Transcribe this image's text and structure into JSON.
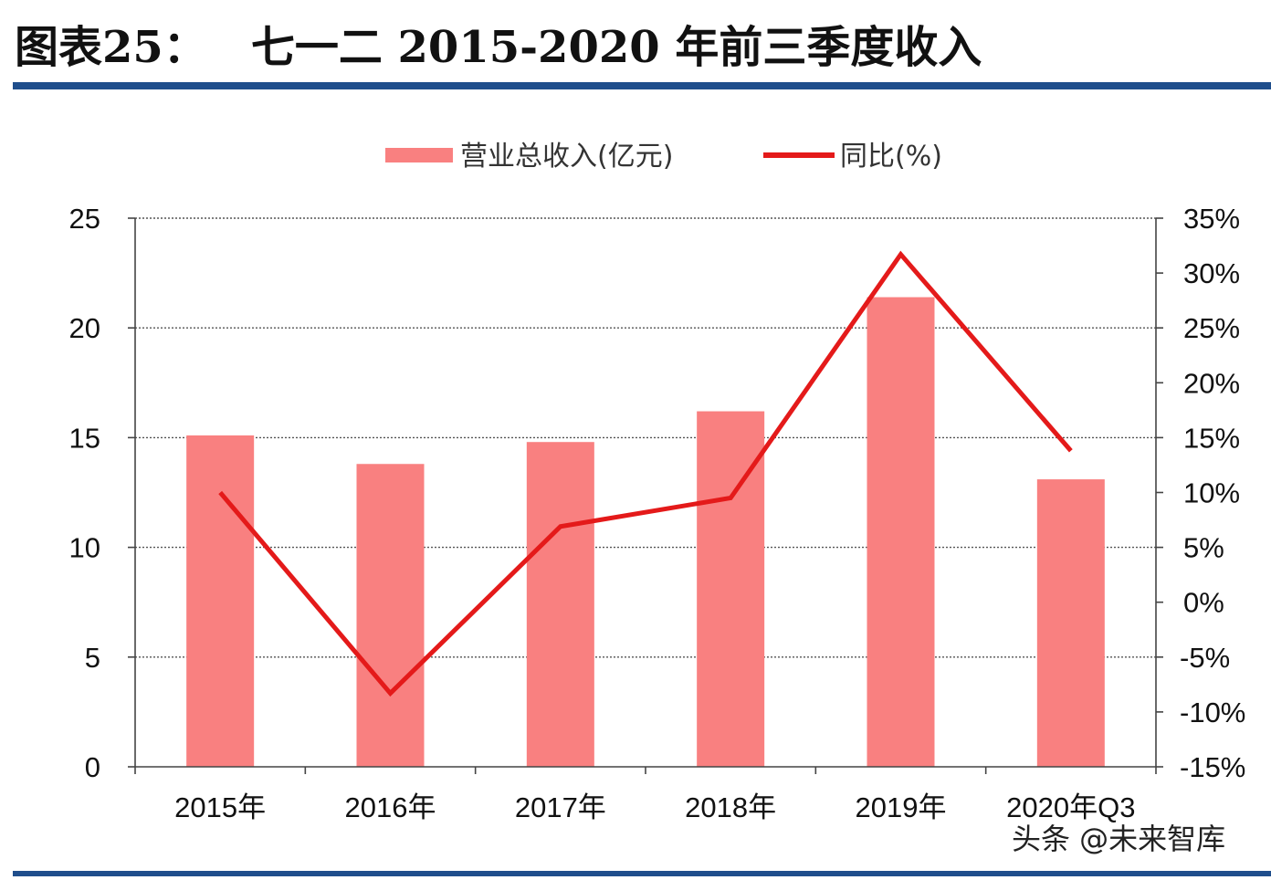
{
  "header": {
    "figure_label": "图表25：",
    "title": "七一二 2015-2020 年前三季度收入"
  },
  "watermark": "头条 @未来智库",
  "colors": {
    "bar": "#f98080",
    "line": "#e41a1a",
    "rule": "#1f4e8c"
  },
  "chart_data": {
    "type": "bar",
    "categories": [
      "2015年",
      "2016年",
      "2017年",
      "2018年",
      "2019年",
      "2020年Q3"
    ],
    "series": [
      {
        "name": "营业总收入(亿元)",
        "type": "bar",
        "axis": "left",
        "values": [
          15.1,
          13.8,
          14.8,
          16.2,
          21.4,
          13.1
        ]
      },
      {
        "name": "同比(%)",
        "type": "line",
        "axis": "right",
        "values": [
          10.0,
          -8.3,
          6.9,
          9.5,
          31.7,
          13.8
        ]
      }
    ],
    "left_axis": {
      "ylim": [
        0,
        25
      ],
      "ticks": [
        0,
        5,
        10,
        15,
        20,
        25
      ],
      "tick_labels": [
        "0",
        "5",
        "10",
        "15",
        "20",
        "25"
      ]
    },
    "right_axis": {
      "ylim": [
        -15,
        35
      ],
      "ticks": [
        -15,
        -10,
        -5,
        0,
        5,
        10,
        15,
        20,
        25,
        30,
        35
      ],
      "tick_labels": [
        "-15%",
        "-10%",
        "-5%",
        "0%",
        "5%",
        "10%",
        "15%",
        "20%",
        "25%",
        "30%",
        "35%"
      ]
    },
    "legend": {
      "position": "top-center",
      "items": [
        "营业总收入(亿元)",
        "同比(%)"
      ]
    },
    "grid": true
  }
}
